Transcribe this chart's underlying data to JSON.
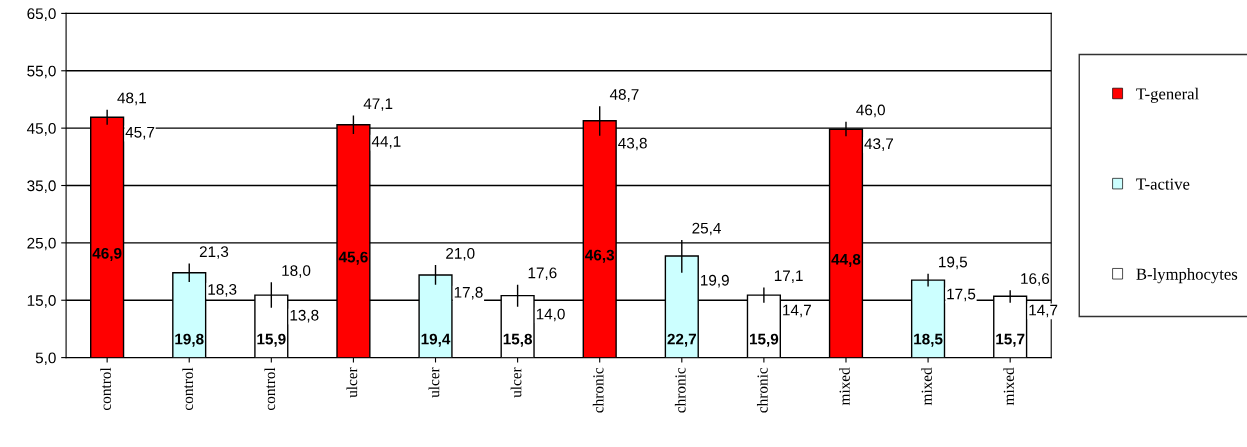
{
  "chart_data": {
    "type": "bar",
    "categories": [
      "control",
      "control",
      "control",
      "ulcer",
      "ulcer",
      "ulcer",
      "chronic",
      "chronic",
      "chronic",
      "mixed",
      "mixed",
      "mixed"
    ],
    "series": [
      {
        "name": "T-general",
        "color": "#ff0000",
        "values": [
          46.9,
          null,
          null,
          45.6,
          null,
          null,
          46.3,
          null,
          null,
          44.8,
          null,
          null
        ],
        "value_labels": [
          "46,9",
          null,
          null,
          "45,6",
          null,
          null,
          "46,3",
          null,
          null,
          "44,8",
          null,
          null
        ],
        "errors": [
          [
            45.7,
            48.1
          ],
          null,
          null,
          [
            44.1,
            47.1
          ],
          null,
          null,
          [
            43.8,
            48.7
          ],
          null,
          null,
          [
            43.7,
            46.0
          ],
          null,
          null
        ]
      },
      {
        "name": "T-active",
        "color": "#ccffff",
        "values": [
          null,
          19.8,
          null,
          null,
          19.4,
          null,
          null,
          22.7,
          null,
          null,
          18.5,
          null
        ],
        "value_labels": [
          null,
          "19,8",
          null,
          null,
          "19,4",
          null,
          null,
          "22,7",
          null,
          null,
          "18,5",
          null
        ],
        "errors": [
          null,
          [
            18.3,
            21.3
          ],
          null,
          null,
          [
            17.8,
            21.0
          ],
          null,
          null,
          [
            19.9,
            25.4
          ],
          null,
          null,
          [
            17.5,
            19.5
          ],
          null
        ]
      },
      {
        "name": "B-lymphocytes",
        "color": "#ffffff",
        "values": [
          null,
          null,
          15.9,
          null,
          null,
          15.8,
          null,
          null,
          15.9,
          null,
          null,
          15.7
        ],
        "value_labels": [
          null,
          null,
          "15,9",
          null,
          null,
          "15,8",
          null,
          null,
          "15,9",
          null,
          null,
          "15,7"
        ],
        "errors": [
          null,
          null,
          [
            13.8,
            18.0
          ],
          null,
          null,
          [
            14.0,
            17.6
          ],
          null,
          null,
          [
            14.7,
            17.1
          ],
          null,
          null,
          [
            14.7,
            16.6
          ]
        ]
      }
    ],
    "annotations": [
      "48,1",
      "45,7",
      "21,3",
      "18,3",
      "18,0",
      "13,8",
      "47,1",
      "44,1",
      "21,0",
      "17,8",
      "17,6",
      "14,0",
      "48,7",
      "43,8",
      "25,4",
      "19,9",
      "17,1",
      "14,7",
      "46,0",
      "43,7",
      "19,5",
      "17,5",
      "16,6",
      "14,7"
    ],
    "ylim": [
      5,
      65
    ],
    "yticks": [
      {
        "value": 5,
        "label": "5,0"
      },
      {
        "value": 15,
        "label": "15,0"
      },
      {
        "value": 25,
        "label": "25,0"
      },
      {
        "value": 35,
        "label": "35,0"
      },
      {
        "value": 45,
        "label": "45,0"
      },
      {
        "value": 55,
        "label": "55,0"
      },
      {
        "value": 65,
        "label": "65,0"
      }
    ],
    "grid": "y",
    "legend": "right"
  }
}
